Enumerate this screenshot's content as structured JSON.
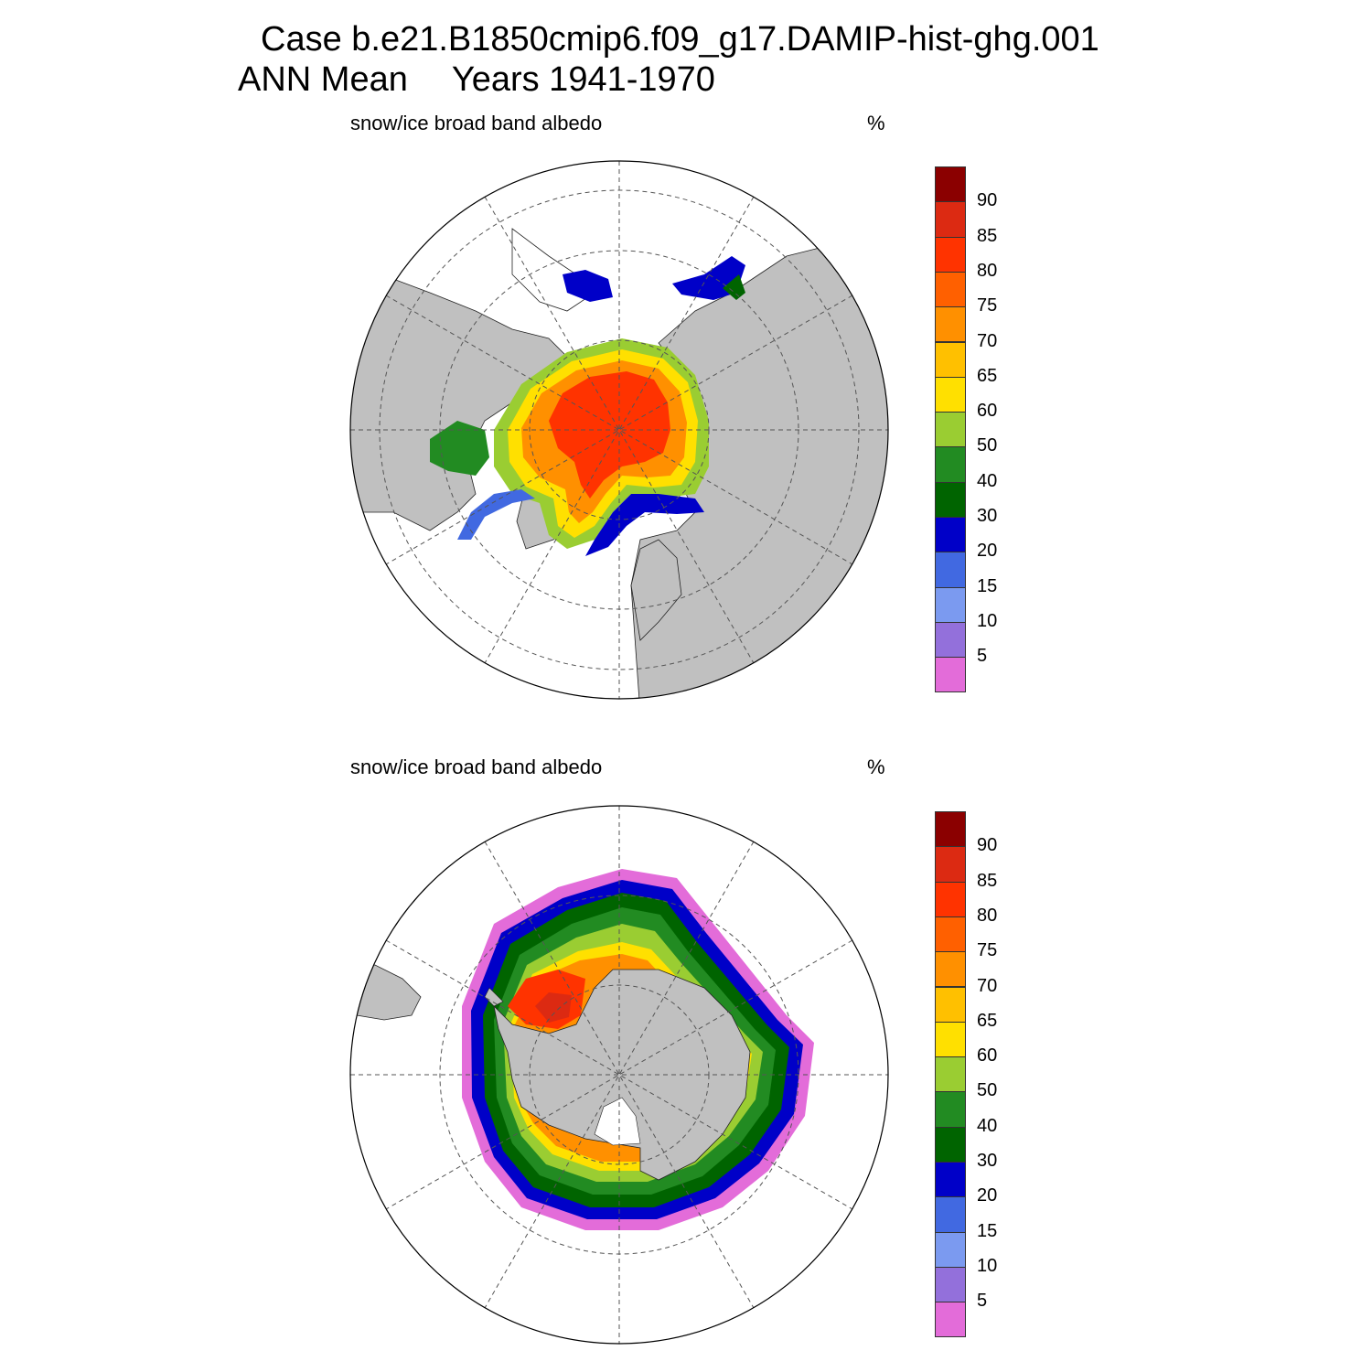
{
  "header": {
    "case_line": "Case b.e21.B1850cmip6.f09_g17.DAMIP-hist-ghg.001",
    "season": "ANN Mean",
    "years": "Years 1941-1970"
  },
  "panels": [
    {
      "id": "north",
      "label": "snow/ice broad band albedo",
      "units": "%",
      "hemisphere": "Northern Hemisphere polar stereographic"
    },
    {
      "id": "south",
      "label": "snow/ice broad band albedo",
      "units": "%",
      "hemisphere": "Southern Hemisphere polar stereographic"
    }
  ],
  "colorbar": {
    "levels": [
      "5",
      "10",
      "15",
      "20",
      "30",
      "40",
      "50",
      "60",
      "65",
      "70",
      "75",
      "80",
      "85",
      "90"
    ],
    "colors": [
      "#e36cd9",
      "#9370db",
      "#7b9af0",
      "#4169e1",
      "#0000c8",
      "#006400",
      "#228b22",
      "#9acd32",
      "#ffe000",
      "#ffc000",
      "#ff9000",
      "#ff6000",
      "#ff3300",
      "#dc2a12",
      "#8b0000"
    ]
  },
  "colors": {
    "land": "#c0c0c0",
    "ocean": "#ffffff",
    "grid": "#555555"
  }
}
